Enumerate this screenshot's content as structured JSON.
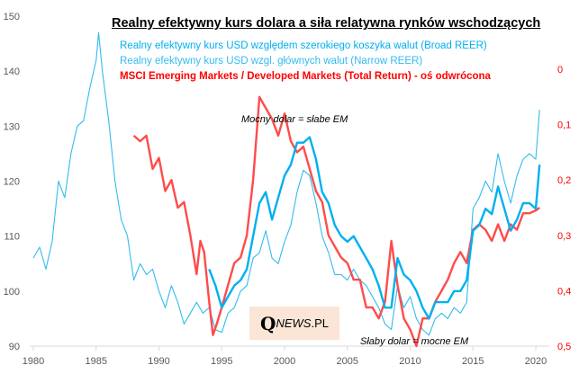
{
  "chart_data": {
    "type": "line",
    "title": "Realny efektywny kurs dolara a siła relatywna rynków wschodzących",
    "x_ticks": [
      "1980",
      "1985",
      "1990",
      "1995",
      "2000",
      "2005",
      "2010",
      "2015",
      "2020"
    ],
    "y_left": {
      "ticks": [
        "90",
        "100",
        "110",
        "120",
        "130",
        "140",
        "150"
      ],
      "range": [
        90,
        150
      ]
    },
    "y_right": {
      "ticks": [
        "0",
        "0,1",
        "0,2",
        "0,3",
        "0,4",
        "0,5"
      ],
      "range": [
        0,
        0.5
      ],
      "inverted": true
    },
    "annotations": [
      "Mocny dolar = słabe EM",
      "Słaby dolar = mocne EM"
    ],
    "series": [
      {
        "name": "Realny efektywny kurs USD względem szerokiego koszyka walut (Broad REER)",
        "axis": "left",
        "color": "#00b0f0",
        "width": "thick",
        "x": [
          1994,
          1994.5,
          1995,
          1995.5,
          1996,
          1996.5,
          1997,
          1997.5,
          1998,
          1998.5,
          1999,
          1999.5,
          2000,
          2000.5,
          2001,
          2001.5,
          2002,
          2002.5,
          2003,
          2003.5,
          2004,
          2004.5,
          2005,
          2005.5,
          2006,
          2006.5,
          2007,
          2007.5,
          2008,
          2008.5,
          2009,
          2009.5,
          2010,
          2010.5,
          2011,
          2011.5,
          2012,
          2012.5,
          2013,
          2013.5,
          2014,
          2014.5,
          2015,
          2015.5,
          2016,
          2016.5,
          2017,
          2017.5,
          2018,
          2018.5,
          2019,
          2019.5,
          2020,
          2020.3
        ],
        "y": [
          104,
          101,
          97,
          99,
          101,
          102,
          104,
          110,
          116,
          118,
          113,
          117,
          121,
          123,
          127,
          127,
          128,
          124,
          118,
          116,
          112,
          110,
          109,
          110,
          108,
          106,
          104,
          101,
          97,
          97,
          106,
          103,
          102,
          100,
          97,
          95,
          98,
          98,
          98,
          100,
          100,
          102,
          111,
          112,
          115,
          114,
          119,
          115,
          111,
          113,
          116,
          116,
          115,
          123
        ]
      },
      {
        "name": "Realny efektywny kurs USD wzgl. głównych walut (Narrow REER)",
        "axis": "left",
        "color": "#33bbee",
        "width": "thin",
        "x": [
          1980,
          1980.5,
          1981,
          1981.5,
          1982,
          1982.5,
          1983,
          1983.5,
          1984,
          1984.5,
          1985,
          1985.2,
          1985.5,
          1986,
          1986.5,
          1987,
          1987.5,
          1988,
          1988.5,
          1989,
          1989.5,
          1990,
          1990.5,
          1991,
          1991.5,
          1992,
          1992.5,
          1993,
          1993.5,
          1994,
          1994.5,
          1995,
          1995.5,
          1996,
          1996.5,
          1997,
          1997.5,
          1998,
          1998.5,
          1999,
          1999.5,
          2000,
          2000.5,
          2001,
          2001.5,
          2002,
          2002.5,
          2003,
          2003.5,
          2004,
          2004.5,
          2005,
          2005.5,
          2006,
          2006.5,
          2007,
          2007.5,
          2008,
          2008.5,
          2009,
          2009.5,
          2010,
          2010.5,
          2011,
          2011.5,
          2012,
          2012.5,
          2013,
          2013.5,
          2014,
          2014.5,
          2015,
          2015.5,
          2016,
          2016.5,
          2017,
          2017.5,
          2018,
          2018.5,
          2019,
          2019.5,
          2020,
          2020.3
        ],
        "y": [
          106,
          108,
          104,
          109,
          120,
          117,
          125,
          130,
          131,
          137,
          142,
          147,
          140,
          131,
          120,
          113,
          110,
          102,
          105,
          103,
          104,
          100,
          97,
          101,
          98,
          94,
          96,
          98,
          96,
          97,
          93,
          92.5,
          96,
          97,
          100,
          101,
          106,
          107,
          111,
          106,
          105,
          109,
          112,
          118,
          122,
          121,
          116,
          110,
          107,
          103,
          103,
          102,
          104,
          102,
          101,
          99,
          97,
          94,
          93,
          101,
          97,
          99,
          95,
          93,
          92,
          95,
          96,
          95,
          97,
          96,
          98,
          115,
          117,
          120,
          118,
          125,
          120,
          116,
          121,
          124,
          125,
          124,
          133
        ]
      },
      {
        "name": "MSCI Emerging Markets / Developed Markets (Total Return) - oś odwrócona",
        "axis": "right",
        "color": "#ff4b4b",
        "width": "thick",
        "x": [
          1988,
          1988.5,
          1989,
          1989.5,
          1990,
          1990.5,
          1991,
          1991.5,
          1992,
          1992.5,
          1993,
          1993.3,
          1993.6,
          1994,
          1994.3,
          1994.6,
          1995,
          1995.5,
          1996,
          1996.5,
          1997,
          1997.5,
          1998,
          1998.5,
          1999,
          1999.5,
          2000,
          2000.5,
          2001,
          2001.5,
          2002,
          2002.5,
          2003,
          2003.5,
          2004,
          2004.5,
          2005,
          2005.5,
          2006,
          2006.5,
          2007,
          2007.5,
          2008,
          2008.5,
          2009,
          2009.5,
          2010,
          2010.5,
          2011,
          2011.5,
          2012,
          2012.5,
          2013,
          2013.5,
          2014,
          2014.5,
          2015,
          2015.5,
          2016,
          2016.5,
          2017,
          2017.5,
          2018,
          2018.5,
          2019,
          2019.5,
          2020,
          2020.3
        ],
        "y": [
          0.12,
          0.13,
          0.12,
          0.18,
          0.16,
          0.22,
          0.2,
          0.25,
          0.24,
          0.3,
          0.37,
          0.31,
          0.33,
          0.42,
          0.48,
          0.46,
          0.43,
          0.39,
          0.35,
          0.34,
          0.3,
          0.2,
          0.05,
          0.07,
          0.09,
          0.12,
          0.08,
          0.13,
          0.15,
          0.14,
          0.18,
          0.22,
          0.24,
          0.3,
          0.32,
          0.34,
          0.35,
          0.38,
          0.38,
          0.43,
          0.43,
          0.45,
          0.42,
          0.31,
          0.39,
          0.45,
          0.47,
          0.5,
          0.45,
          0.45,
          0.42,
          0.4,
          0.38,
          0.35,
          0.33,
          0.35,
          0.29,
          0.28,
          0.29,
          0.31,
          0.28,
          0.31,
          0.28,
          0.29,
          0.26,
          0.26,
          0.255,
          0.25
        ]
      }
    ]
  },
  "logo": {
    "q": "Q",
    "text": "NEWS",
    "suffix": ".PL"
  },
  "colors": {
    "broad": "#00b0f0",
    "narrow": "#33bbee",
    "msci": "#ff4b4b",
    "right_axis": "#ff0000"
  }
}
